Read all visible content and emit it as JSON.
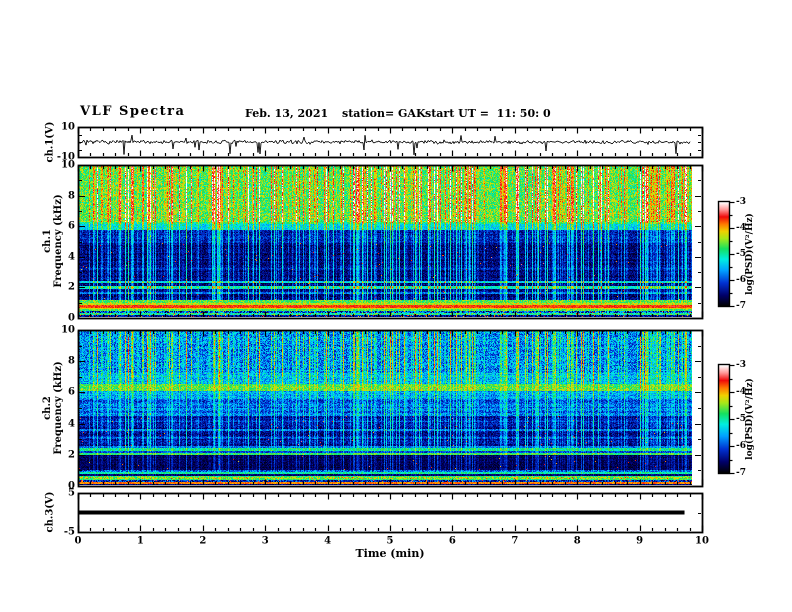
{
  "header": {
    "title": "VLF Spectra",
    "date": "Feb. 13, 2021",
    "station": "station= GAK",
    "start_ut": "start UT =  11: 50: 0"
  },
  "x_axis": {
    "label": "Time (min)",
    "min": 0,
    "max": 10,
    "tick_labels": [
      "0",
      "1",
      "2",
      "3",
      "4",
      "5",
      "6",
      "7",
      "8",
      "9",
      "10"
    ],
    "minor_step_min": 0.2,
    "data_end_min": 9.8
  },
  "colorbar": {
    "label": "log(PSD)(V²/Hz)",
    "tick_labels": [
      "-3",
      "-4",
      "-5",
      "-6",
      "-7"
    ],
    "tick_values": [
      -3,
      -4,
      -5,
      -6,
      -7
    ],
    "max": -3,
    "min": -7,
    "colormap_stops": [
      [
        0,
        "#000006"
      ],
      [
        0.1,
        "#00006a"
      ],
      [
        0.22,
        "#0032d2"
      ],
      [
        0.34,
        "#00a0ff"
      ],
      [
        0.45,
        "#00eee0"
      ],
      [
        0.55,
        "#15e060"
      ],
      [
        0.65,
        "#a8e818"
      ],
      [
        0.72,
        "#f0d000"
      ],
      [
        0.79,
        "#ff7800"
      ],
      [
        0.86,
        "#f00a0a"
      ],
      [
        0.93,
        "#ff9696"
      ],
      [
        1,
        "#ffffff"
      ]
    ]
  },
  "chart_data": {
    "type": "heatmap",
    "title": "VLF Spectra",
    "xlabel": "Time (min)",
    "x_range_min": [
      0,
      10
    ],
    "band_format": "[f_top_kHz, f_bottom_kHz, level_0to1(-7..-3 scale), noise, vertical_streak_gain, red_speckle_prob, row_noise]",
    "hline_format": "[freq_kHz, half_width_kHz, boost]",
    "panels": [
      {
        "id": "ch1_waveform",
        "type": "waveform",
        "ylabel": "ch.1(V)",
        "y_range": [
          -10,
          10
        ],
        "ytick_values": [
          10,
          -10
        ],
        "ytick_labels": [
          "10",
          "-10"
        ],
        "line_color": "#000000",
        "baseline_v": 0,
        "noise_std_v": 0.9,
        "down_spike_count": 15,
        "up_spike_count": 9,
        "seed": 7
      },
      {
        "id": "ch1_spectrogram",
        "type": "spectrogram",
        "ylabel_line1": "ch.1",
        "ylabel_line2": "Frequency (kHz)",
        "y_range": [
          0,
          10
        ],
        "ytick_major": [
          10,
          8,
          6,
          4,
          2,
          0
        ],
        "ytick_minor": [
          9,
          7,
          5,
          3,
          1
        ],
        "seed": 11,
        "bands": [
          [
            10,
            6.3,
            0.57,
            0.11,
            0.34,
            0,
            0.02
          ],
          [
            6.3,
            5.75,
            0.4,
            0.09,
            0.28,
            0,
            0.02
          ],
          [
            5.75,
            4.9,
            0.16,
            0.08,
            0.3,
            0,
            0.03
          ],
          [
            4.9,
            1.15,
            0.1,
            0.07,
            0.3,
            0.003,
            0.03
          ],
          [
            1.15,
            0.92,
            0.58,
            0.1,
            0.06,
            0,
            0.02
          ],
          [
            0.92,
            0.8,
            0.66,
            0.08,
            0.04,
            0,
            0
          ],
          [
            0.8,
            0.6,
            0.82,
            0.05,
            0.02,
            0,
            0.02
          ],
          [
            0.6,
            0.5,
            0.7,
            0.06,
            0.02,
            0,
            0
          ],
          [
            0.5,
            0.4,
            0.57,
            0.08,
            0.04,
            0,
            0
          ],
          [
            0.4,
            0.24,
            0.24,
            0.2,
            0.08,
            0.04,
            0.02
          ],
          [
            0.24,
            0.12,
            0.5,
            0.12,
            0.05,
            0.02,
            0
          ],
          [
            0.12,
            0,
            0.14,
            0.1,
            0.05,
            0.05,
            0
          ]
        ],
        "hlines": [
          [
            6.2,
            0.07,
            0.1
          ],
          [
            3.2,
            0.06,
            0.08
          ],
          [
            2.3,
            0.07,
            0.26
          ],
          [
            1.95,
            0.07,
            0.26
          ],
          [
            1.6,
            0.06,
            0.14
          ]
        ]
      },
      {
        "id": "ch2_spectrogram",
        "type": "spectrogram",
        "ylabel_line1": "ch.2",
        "ylabel_line2": "Frequency (kHz)",
        "y_range": [
          0,
          10
        ],
        "ytick_major": [
          10,
          8,
          6,
          4,
          2,
          0
        ],
        "ytick_minor": [
          9,
          7,
          5,
          3,
          1
        ],
        "seed": 23,
        "bands": [
          [
            10,
            7.3,
            0.3,
            0.13,
            0.34,
            0,
            0.03
          ],
          [
            7.3,
            6.55,
            0.36,
            0.11,
            0.28,
            0,
            0.03
          ],
          [
            6.55,
            6.1,
            0.57,
            0.09,
            0.12,
            0,
            0.02
          ],
          [
            6.1,
            5.6,
            0.32,
            0.1,
            0.2,
            0,
            0.04
          ],
          [
            5.6,
            4.5,
            0.26,
            0.1,
            0.2,
            0,
            0.045
          ],
          [
            4.5,
            2.55,
            0.13,
            0.08,
            0.24,
            0.005,
            0.03
          ],
          [
            2.55,
            2.4,
            0.28,
            0.08,
            0.15,
            0,
            0.02
          ],
          [
            2.4,
            2.22,
            0.5,
            0.08,
            0.08,
            0,
            0
          ],
          [
            2.22,
            2.08,
            0.22,
            0.08,
            0.1,
            0,
            0
          ],
          [
            2.08,
            1.92,
            0.54,
            0.08,
            0.08,
            0,
            0
          ],
          [
            1.92,
            0.97,
            0.07,
            0.05,
            0.14,
            0.004,
            0.02
          ],
          [
            0.97,
            0.84,
            0.26,
            0.12,
            0.1,
            0,
            0.03
          ],
          [
            0.84,
            0.74,
            0.48,
            0.08,
            0.05,
            0,
            0
          ],
          [
            0.74,
            0.6,
            0.1,
            0.06,
            0.06,
            0,
            0
          ],
          [
            0.6,
            0.5,
            0.54,
            0.1,
            0.05,
            0,
            0
          ],
          [
            0.5,
            0.4,
            0.62,
            0.12,
            0.04,
            0.05,
            0
          ],
          [
            0.4,
            0.3,
            0.54,
            0.08,
            0.04,
            0,
            0
          ],
          [
            0.3,
            0.17,
            0.18,
            0.14,
            0.06,
            0.05,
            0
          ],
          [
            0.17,
            0.09,
            0.78,
            0.05,
            0.02,
            0,
            0
          ],
          [
            0.09,
            0,
            0.1,
            0.07,
            0.03,
            0,
            0
          ]
        ],
        "hlines": [
          [
            4.15,
            0.05,
            0.06
          ],
          [
            3.55,
            0.06,
            0.1
          ],
          [
            3.05,
            0.06,
            0.08
          ]
        ]
      },
      {
        "id": "ch3_trace",
        "type": "flatline",
        "ylabel": "ch.3(V)",
        "y_range": [
          -5,
          5
        ],
        "ytick_values": [
          5,
          -5
        ],
        "ytick_labels": [
          "5",
          "-5"
        ],
        "value_v": 0,
        "line_color": "#000000",
        "line_thickness_px": 4
      }
    ]
  }
}
